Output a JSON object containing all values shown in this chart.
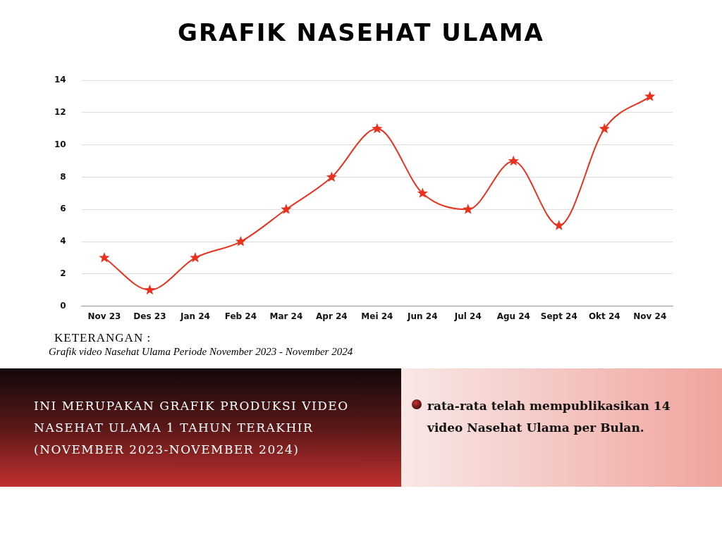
{
  "chart_data": {
    "type": "line",
    "title": "GRAFIK NASEHAT ULAMA",
    "categories": [
      "Nov 23",
      "Des 23",
      "Jan 24",
      "Feb 24",
      "Mar 24",
      "Apr 24",
      "Mei 24",
      "Jun 24",
      "Jul 24",
      "Agu 24",
      "Sept 24",
      "Okt 24",
      "Nov 24"
    ],
    "series": [
      {
        "color": "#e8321e",
        "values": [
          3,
          1,
          3,
          4,
          6,
          8,
          11,
          7,
          6,
          9,
          5,
          11,
          13
        ]
      }
    ],
    "ylim": [
      0,
      14
    ],
    "yticks": [
      0,
      2,
      4,
      6,
      8,
      10,
      12,
      14
    ],
    "grid": "y",
    "legend": false,
    "marker": "star",
    "line_style": "solid",
    "annotations": [
      "KETERANGAN :",
      "Grafik video Nasehat Ulama Periode November 2023 - November 2024",
      "INI MERUPAKAN GRAFIK PRODUKSI VIDEO NASEHAT ULAMA 1 TAHUN TERAKHIR (NOVEMBER 2023-NOVEMBER 2024)",
      "rata-rata telah mempublikasikan 14 video Nasehat Ulama per Bulan."
    ]
  }
}
